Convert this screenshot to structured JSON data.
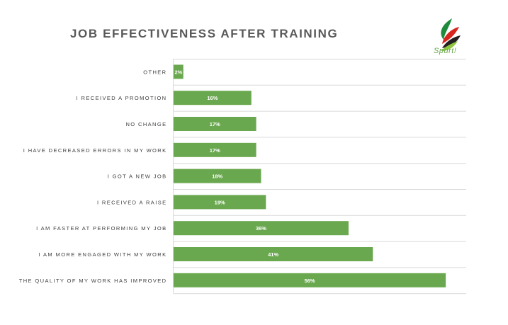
{
  "logo": {
    "text": "Spurt!",
    "colors": {
      "green": "#1e8a3c",
      "light_green": "#8dc63f",
      "red": "#d7261e",
      "dark": "#231f20"
    }
  },
  "chart_data": {
    "type": "bar",
    "orientation": "horizontal",
    "title": "JOB EFFECTIVENESS AFTER TRAINING",
    "xlabel": "",
    "ylabel": "",
    "xlim": [
      0,
      60
    ],
    "grid": true,
    "legend": "none",
    "bar_color": "#6aa84f",
    "gridline_color": "#d9d9d9",
    "categories": [
      "OTHER",
      "I RECEIVED A PROMOTION",
      "NO CHANGE",
      "I HAVE DECREASED ERRORS IN MY WORK",
      "I GOT A NEW JOB",
      "I RECEIVED A RAISE",
      "I AM FASTER AT PERFORMING MY JOB",
      "I AM MORE ENGAGED WITH MY WORK",
      "THE QUALITY OF MY WORK HAS IMPROVED"
    ],
    "values": [
      2,
      16,
      17,
      17,
      18,
      19,
      36,
      41,
      56
    ],
    "data_labels": [
      "2%",
      "16%",
      "17%",
      "17%",
      "18%",
      "19%",
      "36%",
      "41%",
      "56%"
    ]
  }
}
